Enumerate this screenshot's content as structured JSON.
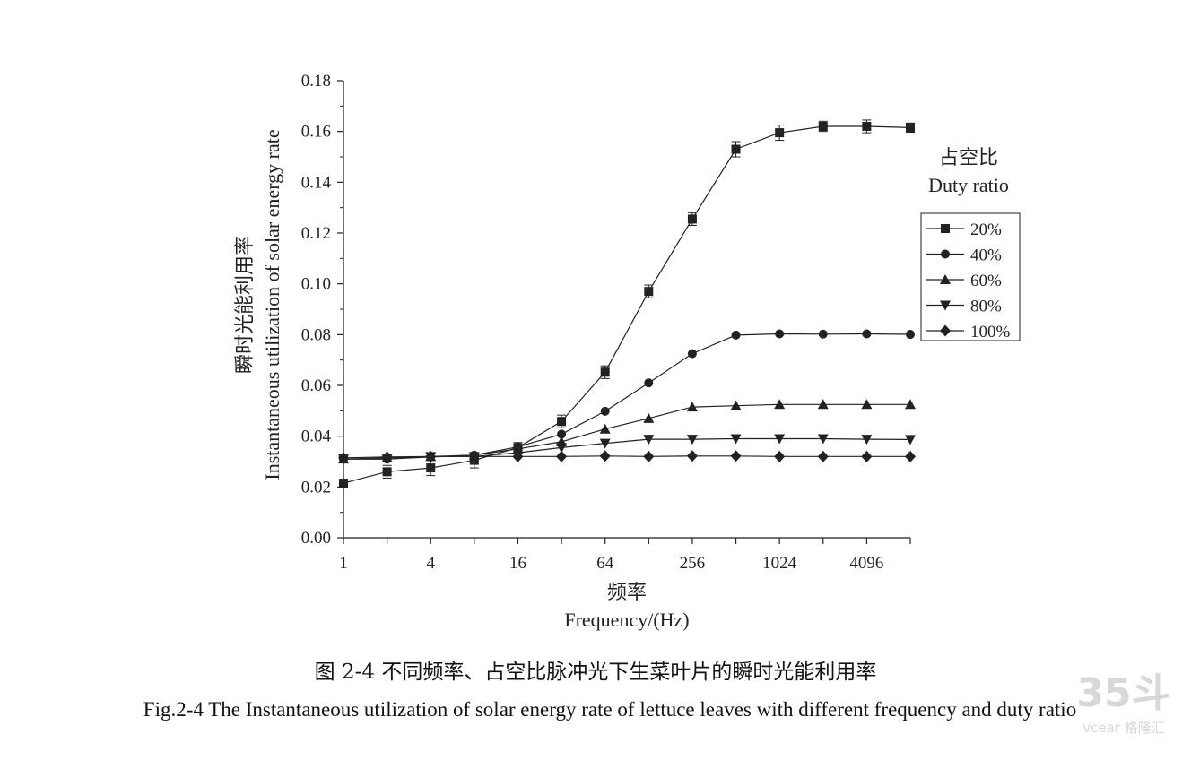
{
  "chart_data": {
    "type": "line",
    "ylabel_cn": "瞬时光能利用率",
    "ylabel": "Instantaneous utilization of solar energy rate",
    "xlabel_cn": "频率",
    "xlabel": "Frequency/(Hz)",
    "x_scale": "log2",
    "xlim": [
      1,
      8192
    ],
    "ylim": [
      0,
      0.18
    ],
    "x_ticks": [
      "1",
      "4",
      "16",
      "64",
      "256",
      "1024",
      "4096"
    ],
    "x_tick_values": [
      1,
      4,
      16,
      64,
      256,
      1024,
      4096
    ],
    "y_ticks": [
      "0.00",
      "0.02",
      "0.04",
      "0.06",
      "0.08",
      "0.10",
      "0.12",
      "0.14",
      "0.16",
      "0.18"
    ],
    "y_tick_values": [
      0,
      0.02,
      0.04,
      0.06,
      0.08,
      0.1,
      0.12,
      0.14,
      0.16,
      0.18
    ],
    "x": [
      1,
      2,
      4,
      8,
      16,
      32,
      64,
      128,
      256,
      512,
      1024,
      2048,
      4096,
      8192
    ],
    "legend_title_cn": "占空比",
    "legend_title": "Duty ratio",
    "legend_position": "right",
    "grid": false,
    "series": [
      {
        "name": "20%",
        "marker": "square",
        "values": [
          0.0215,
          0.026,
          0.0275,
          0.0305,
          0.0355,
          0.0458,
          0.0652,
          0.097,
          0.1255,
          0.153,
          0.1595,
          0.162,
          0.162,
          0.1615
        ],
        "errors": [
          0.0015,
          0.0025,
          0.003,
          0.003,
          0.002,
          0.0025,
          0.0025,
          0.0025,
          0.0025,
          0.003,
          0.003,
          0.002,
          0.0025,
          0.0018
        ]
      },
      {
        "name": "40%",
        "marker": "circle",
        "values": [
          0.031,
          0.031,
          0.0318,
          0.0325,
          0.0358,
          0.0408,
          0.0498,
          0.061,
          0.0725,
          0.0798,
          0.0803,
          0.0802,
          0.0803,
          0.0801
        ]
      },
      {
        "name": "60%",
        "marker": "triangle-up",
        "values": [
          0.031,
          0.0315,
          0.032,
          0.0325,
          0.035,
          0.0378,
          0.0428,
          0.047,
          0.0515,
          0.052,
          0.0525,
          0.0525,
          0.0525,
          0.0525
        ]
      },
      {
        "name": "80%",
        "marker": "triangle-down",
        "values": [
          0.031,
          0.031,
          0.032,
          0.032,
          0.0335,
          0.0355,
          0.0372,
          0.0388,
          0.0388,
          0.039,
          0.039,
          0.039,
          0.0388,
          0.0387
        ]
      },
      {
        "name": "100%",
        "marker": "diamond",
        "values": [
          0.0315,
          0.0318,
          0.032,
          0.032,
          0.032,
          0.032,
          0.0322,
          0.032,
          0.0322,
          0.0322,
          0.032,
          0.032,
          0.032,
          0.032
        ]
      }
    ]
  },
  "caption": {
    "cn": "图 2-4  不同频率、占空比脉冲光下生菜叶片的瞬时光能利用率",
    "en": "Fig.2-4    The Instantaneous utilization of solar energy rate of lettuce leaves with different frequency and duty ratio"
  },
  "watermark": {
    "top": "35斗",
    "bottom": "vcear 格隆汇"
  },
  "colors": {
    "line": "#222222",
    "axis": "#222222",
    "watermark": "#d8d8d8"
  }
}
